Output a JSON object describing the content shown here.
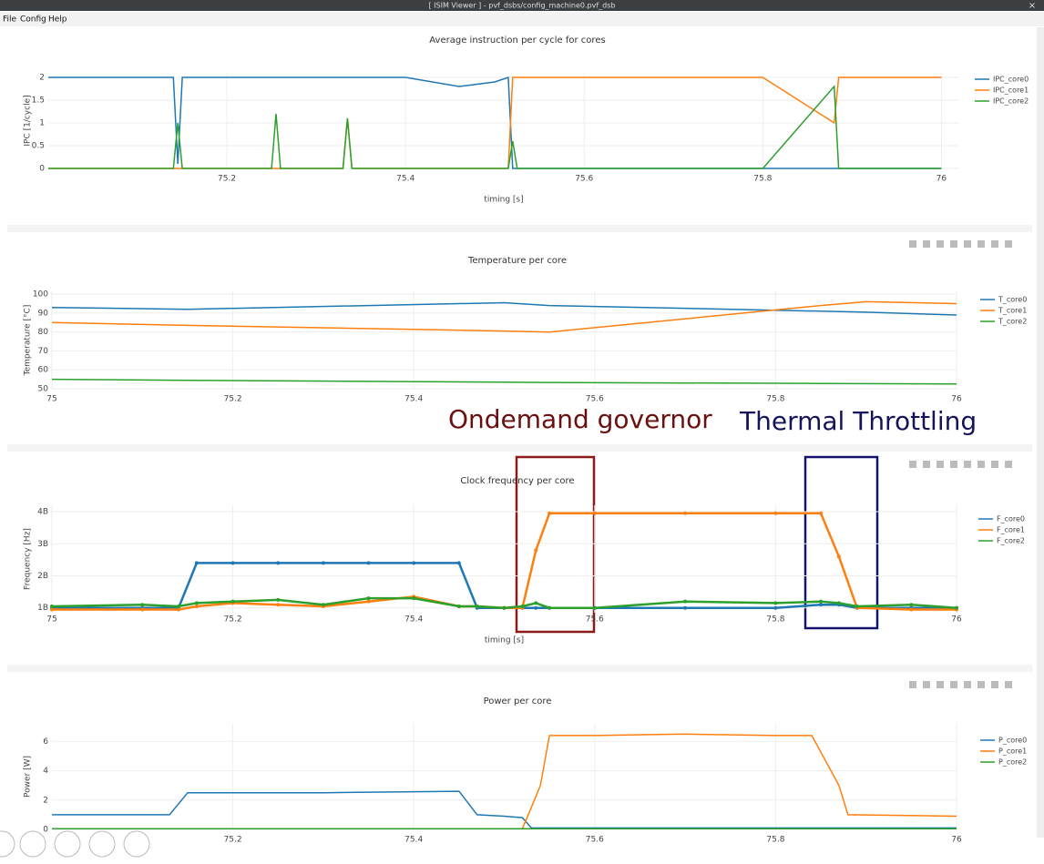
{
  "window": {
    "title": "[ ISIM Viewer ] - pvf_dsbs/config_machine0.pvf_dsb"
  },
  "menu": [
    "File",
    "Config",
    "Help"
  ],
  "annotations": [
    "Ondemand governor",
    "Thermal Throttling"
  ],
  "chart_data": [
    {
      "type": "line",
      "title": "Average instruction per cycle for cores",
      "x_label": "timing [s]",
      "y_label": "IPC [1/cycle]",
      "x": [
        75,
        75.1,
        75.14,
        75.145,
        75.15,
        75.2,
        75.25,
        75.255,
        75.26,
        75.3,
        75.33,
        75.335,
        75.34,
        75.4,
        75.46,
        75.5,
        75.515,
        75.52,
        75.525,
        75.6,
        75.7,
        75.8,
        75.88,
        75.885,
        75.89,
        76
      ],
      "series": [
        {
          "name": "IPC_core0",
          "color": "#1f77b4",
          "values": [
            2,
            2,
            2,
            0.1,
            2,
            2,
            2,
            2,
            2,
            2,
            2,
            2,
            2,
            2,
            1.8,
            1.9,
            2,
            0,
            0,
            0,
            0,
            0,
            0,
            0,
            0,
            0
          ]
        },
        {
          "name": "IPC_core1",
          "color": "#ff7f0e",
          "values": [
            0,
            0,
            0,
            0,
            0,
            0,
            0,
            0,
            0,
            0,
            0,
            1.1,
            0,
            0,
            0,
            0,
            0,
            2,
            2,
            2,
            2,
            2,
            1,
            2,
            2,
            2
          ]
        },
        {
          "name": "IPC_core2",
          "color": "#2ca02c",
          "values": [
            0,
            0,
            0,
            1,
            0,
            0,
            0,
            1.2,
            0,
            0,
            0,
            1.1,
            0,
            0,
            0,
            0,
            0,
            0.6,
            0,
            0,
            0,
            0,
            1.8,
            0,
            0,
            0
          ]
        }
      ],
      "xlim": [
        75,
        76.02
      ],
      "xticks": [
        75.2,
        75.4,
        75.6,
        75.8,
        76
      ],
      "ylim": [
        0,
        2.1
      ],
      "yticks": [
        0,
        0.5,
        1,
        1.5,
        2
      ],
      "grid": true,
      "legend": "right"
    },
    {
      "type": "line",
      "title": "Temperature per core",
      "y_label": "Temperature [°C]",
      "x": [
        75,
        75.15,
        75.5,
        75.55,
        75.85,
        75.9,
        76
      ],
      "series": [
        {
          "name": "T_core0",
          "color": "#1f77b4",
          "values": [
            93,
            92,
            95.5,
            94,
            91,
            90.5,
            89
          ]
        },
        {
          "name": "T_core1",
          "color": "#ff7f0e",
          "values": [
            85,
            83.5,
            80.5,
            80,
            94,
            96,
            95
          ]
        },
        {
          "name": "T_core2",
          "color": "#2ca02c",
          "values": [
            55,
            54.5,
            53.5,
            53.3,
            52.8,
            52.7,
            52.5
          ]
        }
      ],
      "xlim": [
        75,
        76
      ],
      "xticks": [
        75,
        75.2,
        75.4,
        75.6,
        75.8,
        76
      ],
      "ylim": [
        50,
        101.5
      ],
      "yticks": [
        50,
        60,
        70,
        80,
        90,
        100
      ],
      "grid": true,
      "legend": "right"
    },
    {
      "type": "line",
      "title": "Clock frequency per core",
      "x_label": "timing [s]",
      "y_label": "Frequency [Hz]",
      "markers": true,
      "x": [
        75,
        75.1,
        75.14,
        75.16,
        75.2,
        75.25,
        75.3,
        75.35,
        75.4,
        75.45,
        75.47,
        75.5,
        75.52,
        75.535,
        75.55,
        75.6,
        75.7,
        75.8,
        75.85,
        75.87,
        75.89,
        75.95,
        76
      ],
      "series": [
        {
          "name": "F_core0",
          "color": "#1f77b4",
          "values": [
            1000000000,
            1000000000,
            1000000000,
            2400000000,
            2400000000,
            2400000000,
            2400000000,
            2400000000,
            2400000000,
            2400000000,
            1000000000,
            1000000000,
            1000000000,
            1000000000,
            1000000000,
            1000000000,
            1000000000,
            1000000000,
            1100000000,
            1100000000,
            1000000000,
            1000000000,
            1000000000
          ]
        },
        {
          "name": "F_core1",
          "color": "#ff7f0e",
          "values": [
            950000000,
            950000000,
            950000000,
            1050000000,
            1150000000,
            1100000000,
            1050000000,
            1200000000,
            1350000000,
            1050000000,
            1050000000,
            1000000000,
            1000000000,
            2800000000,
            3950000000,
            3950000000,
            3950000000,
            3950000000,
            3950000000,
            2600000000,
            1000000000,
            950000000,
            950000000
          ]
        },
        {
          "name": "F_core2",
          "color": "#2ca02c",
          "values": [
            1050000000,
            1100000000,
            1050000000,
            1150000000,
            1200000000,
            1250000000,
            1100000000,
            1300000000,
            1300000000,
            1050000000,
            1050000000,
            1000000000,
            1050000000,
            1150000000,
            1000000000,
            1000000000,
            1200000000,
            1150000000,
            1200000000,
            1150000000,
            1050000000,
            1100000000,
            1000000000
          ]
        }
      ],
      "xlim": [
        75,
        76
      ],
      "xticks": [
        75,
        75.2,
        75.4,
        75.6,
        75.8,
        76
      ],
      "ylim": [
        850000000,
        4200000000
      ],
      "yticks": [
        {
          "value": 1000000000,
          "label": "1B"
        },
        {
          "value": 2000000000,
          "label": "2B"
        },
        {
          "value": 3000000000,
          "label": "3B"
        },
        {
          "value": 4000000000,
          "label": "4B"
        }
      ],
      "grid": true,
      "legend": "right"
    },
    {
      "type": "line",
      "title": "Power per core",
      "y_label": "Power [W]",
      "x": [
        75,
        75.13,
        75.15,
        75.2,
        75.3,
        75.45,
        75.47,
        75.5,
        75.52,
        75.53,
        75.54,
        75.55,
        75.6,
        75.7,
        75.8,
        75.84,
        75.87,
        75.88,
        76
      ],
      "series": [
        {
          "name": "P_core0",
          "color": "#1f77b4",
          "values": [
            1,
            1,
            2.5,
            2.5,
            2.5,
            2.6,
            1,
            0.9,
            0.8,
            0.1,
            0.1,
            0.1,
            0.1,
            0.1,
            0.1,
            0.1,
            0.1,
            0.1,
            0.1
          ]
        },
        {
          "name": "P_core1",
          "color": "#ff7f0e",
          "values": [
            0.05,
            0.05,
            0.05,
            0.05,
            0.05,
            0.05,
            0.05,
            0.05,
            0.05,
            1.5,
            3,
            6.4,
            6.4,
            6.5,
            6.4,
            6.4,
            3,
            1,
            0.9
          ]
        },
        {
          "name": "P_core2",
          "color": "#2ca02c",
          "values": [
            0.05,
            0.05,
            0.05,
            0.05,
            0.05,
            0.05,
            0.05,
            0.05,
            0.05,
            0.05,
            0.05,
            0.05,
            0.05,
            0.05,
            0.05,
            0.05,
            0.05,
            0.05,
            0.05
          ]
        }
      ],
      "xlim": [
        75,
        76
      ],
      "xticks": [
        75.2,
        75.4,
        75.6,
        75.8,
        76
      ],
      "ylim": [
        0,
        7.2
      ],
      "yticks": [
        0,
        2,
        4,
        6
      ],
      "grid": true,
      "legend": "right"
    }
  ]
}
